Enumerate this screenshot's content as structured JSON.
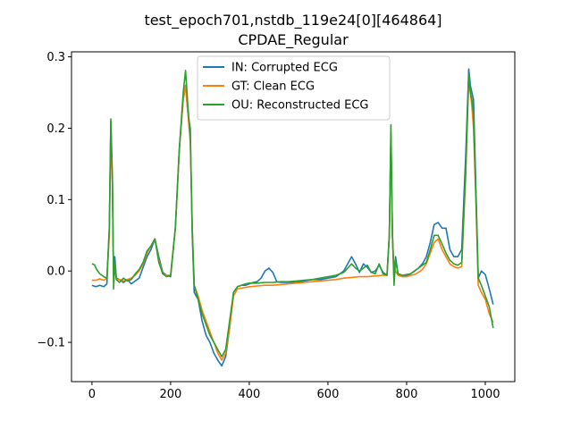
{
  "chart_data": {
    "type": "line",
    "title": "test_epoch701,nstdb_119e24[0][464864]",
    "subtitle": "CPDAE_Regular",
    "xlabel": "",
    "ylabel": "",
    "xlim": [
      -52,
      1075
    ],
    "ylim": [
      -0.155,
      0.307
    ],
    "xticks": [
      0,
      200,
      400,
      600,
      800,
      1000
    ],
    "yticks": [
      -0.1,
      0.0,
      0.1,
      0.2,
      0.3
    ],
    "xtick_labels": [
      "0",
      "200",
      "400",
      "600",
      "800",
      "1000"
    ],
    "ytick_labels": [
      "−0.1",
      "0.0",
      "0.1",
      "0.2",
      "0.3"
    ],
    "grid": false,
    "legend_position": "top-center",
    "series": [
      {
        "name": "IN: Corrupted ECG",
        "color": "#1f77b4",
        "points": [
          [
            0,
            -0.02
          ],
          [
            10,
            -0.022
          ],
          [
            20,
            -0.02
          ],
          [
            30,
            -0.022
          ],
          [
            38,
            -0.018
          ],
          [
            44,
            0.06
          ],
          [
            48,
            0.21
          ],
          [
            52,
            0.12
          ],
          [
            55,
            -0.01
          ],
          [
            58,
            0.02
          ],
          [
            62,
            -0.01
          ],
          [
            70,
            -0.012
          ],
          [
            80,
            -0.016
          ],
          [
            90,
            -0.012
          ],
          [
            100,
            -0.018
          ],
          [
            110,
            -0.014
          ],
          [
            120,
            -0.01
          ],
          [
            130,
            0.005
          ],
          [
            140,
            0.02
          ],
          [
            150,
            0.03
          ],
          [
            160,
            0.045
          ],
          [
            170,
            0.02
          ],
          [
            180,
            -0.002
          ],
          [
            190,
            -0.006
          ],
          [
            200,
            -0.008
          ],
          [
            212,
            0.06
          ],
          [
            222,
            0.17
          ],
          [
            232,
            0.24
          ],
          [
            238,
            0.26
          ],
          [
            244,
            0.22
          ],
          [
            250,
            0.2
          ],
          [
            255,
            0.05
          ],
          [
            260,
            -0.03
          ],
          [
            270,
            -0.04
          ],
          [
            280,
            -0.07
          ],
          [
            290,
            -0.09
          ],
          [
            300,
            -0.1
          ],
          [
            310,
            -0.115
          ],
          [
            320,
            -0.125
          ],
          [
            330,
            -0.133
          ],
          [
            340,
            -0.12
          ],
          [
            350,
            -0.08
          ],
          [
            360,
            -0.03
          ],
          [
            370,
            -0.022
          ],
          [
            380,
            -0.02
          ],
          [
            390,
            -0.02
          ],
          [
            400,
            -0.018
          ],
          [
            410,
            -0.016
          ],
          [
            420,
            -0.015
          ],
          [
            430,
            -0.01
          ],
          [
            440,
            0.0
          ],
          [
            450,
            0.004
          ],
          [
            460,
            -0.002
          ],
          [
            470,
            -0.015
          ],
          [
            480,
            -0.016
          ],
          [
            500,
            -0.016
          ],
          [
            520,
            -0.016
          ],
          [
            540,
            -0.014
          ],
          [
            560,
            -0.012
          ],
          [
            580,
            -0.012
          ],
          [
            600,
            -0.01
          ],
          [
            620,
            -0.008
          ],
          [
            640,
            0.0
          ],
          [
            650,
            0.01
          ],
          [
            660,
            0.02
          ],
          [
            670,
            0.01
          ],
          [
            680,
            -0.002
          ],
          [
            690,
            0.01
          ],
          [
            700,
            0.005
          ],
          [
            710,
            -0.002
          ],
          [
            720,
            0.0
          ],
          [
            730,
            0.008
          ],
          [
            740,
            -0.002
          ],
          [
            750,
            -0.006
          ],
          [
            756,
            0.05
          ],
          [
            760,
            0.19
          ],
          [
            764,
            0.05
          ],
          [
            768,
            -0.004
          ],
          [
            772,
            0.02
          ],
          [
            778,
            -0.004
          ],
          [
            790,
            -0.008
          ],
          [
            800,
            -0.006
          ],
          [
            810,
            -0.004
          ],
          [
            820,
            0.0
          ],
          [
            830,
            0.004
          ],
          [
            840,
            0.01
          ],
          [
            850,
            0.02
          ],
          [
            860,
            0.04
          ],
          [
            870,
            0.065
          ],
          [
            880,
            0.068
          ],
          [
            890,
            0.06
          ],
          [
            900,
            0.06
          ],
          [
            910,
            0.03
          ],
          [
            920,
            0.02
          ],
          [
            930,
            0.02
          ],
          [
            940,
            0.03
          ],
          [
            950,
            0.16
          ],
          [
            958,
            0.283
          ],
          [
            962,
            0.26
          ],
          [
            966,
            0.25
          ],
          [
            970,
            0.24
          ],
          [
            976,
            0.12
          ],
          [
            982,
            -0.01
          ],
          [
            990,
            0.0
          ],
          [
            1000,
            -0.005
          ],
          [
            1010,
            -0.025
          ],
          [
            1020,
            -0.047
          ]
        ]
      },
      {
        "name": "GT: Clean ECG",
        "color": "#ff7f0e",
        "points": [
          [
            0,
            -0.013
          ],
          [
            10,
            -0.013
          ],
          [
            20,
            -0.011
          ],
          [
            30,
            -0.013
          ],
          [
            38,
            -0.01
          ],
          [
            44,
            0.05
          ],
          [
            48,
            0.19
          ],
          [
            52,
            0.12
          ],
          [
            55,
            -0.01
          ],
          [
            58,
            0.01
          ],
          [
            62,
            -0.012
          ],
          [
            70,
            -0.012
          ],
          [
            80,
            -0.014
          ],
          [
            90,
            -0.012
          ],
          [
            100,
            -0.01
          ],
          [
            110,
            -0.006
          ],
          [
            120,
            0.0
          ],
          [
            130,
            0.01
          ],
          [
            140,
            0.025
          ],
          [
            150,
            0.035
          ],
          [
            160,
            0.045
          ],
          [
            170,
            0.015
          ],
          [
            180,
            -0.004
          ],
          [
            190,
            -0.006
          ],
          [
            200,
            -0.006
          ],
          [
            212,
            0.06
          ],
          [
            222,
            0.17
          ],
          [
            232,
            0.24
          ],
          [
            238,
            0.26
          ],
          [
            244,
            0.22
          ],
          [
            250,
            0.18
          ],
          [
            255,
            0.06
          ],
          [
            260,
            -0.02
          ],
          [
            270,
            -0.035
          ],
          [
            280,
            -0.055
          ],
          [
            290,
            -0.07
          ],
          [
            300,
            -0.085
          ],
          [
            310,
            -0.1
          ],
          [
            320,
            -0.115
          ],
          [
            330,
            -0.125
          ],
          [
            340,
            -0.115
          ],
          [
            350,
            -0.08
          ],
          [
            360,
            -0.035
          ],
          [
            370,
            -0.025
          ],
          [
            380,
            -0.024
          ],
          [
            390,
            -0.023
          ],
          [
            400,
            -0.022
          ],
          [
            420,
            -0.021
          ],
          [
            440,
            -0.02
          ],
          [
            460,
            -0.02
          ],
          [
            480,
            -0.019
          ],
          [
            500,
            -0.018
          ],
          [
            520,
            -0.017
          ],
          [
            540,
            -0.016
          ],
          [
            560,
            -0.015
          ],
          [
            580,
            -0.014
          ],
          [
            600,
            -0.013
          ],
          [
            620,
            -0.012
          ],
          [
            640,
            -0.01
          ],
          [
            660,
            -0.009
          ],
          [
            680,
            -0.008
          ],
          [
            700,
            -0.008
          ],
          [
            720,
            -0.007
          ],
          [
            740,
            -0.006
          ],
          [
            750,
            -0.006
          ],
          [
            756,
            0.05
          ],
          [
            760,
            0.19
          ],
          [
            764,
            0.05
          ],
          [
            768,
            -0.004
          ],
          [
            772,
            0.0
          ],
          [
            778,
            -0.006
          ],
          [
            790,
            -0.008
          ],
          [
            800,
            -0.008
          ],
          [
            810,
            -0.006
          ],
          [
            820,
            -0.005
          ],
          [
            830,
            -0.002
          ],
          [
            840,
            0.002
          ],
          [
            850,
            0.01
          ],
          [
            860,
            0.025
          ],
          [
            870,
            0.04
          ],
          [
            880,
            0.045
          ],
          [
            890,
            0.03
          ],
          [
            900,
            0.02
          ],
          [
            910,
            0.01
          ],
          [
            920,
            0.006
          ],
          [
            930,
            0.004
          ],
          [
            940,
            0.006
          ],
          [
            950,
            0.13
          ],
          [
            958,
            0.27
          ],
          [
            962,
            0.25
          ],
          [
            966,
            0.23
          ],
          [
            970,
            0.2
          ],
          [
            976,
            0.1
          ],
          [
            982,
            -0.02
          ],
          [
            990,
            -0.03
          ],
          [
            1000,
            -0.04
          ],
          [
            1010,
            -0.06
          ],
          [
            1020,
            -0.072
          ]
        ]
      },
      {
        "name": "OU: Reconstructed ECG",
        "color": "#2ca02c",
        "points": [
          [
            0,
            0.01
          ],
          [
            6,
            0.009
          ],
          [
            12,
            0.002
          ],
          [
            20,
            -0.004
          ],
          [
            30,
            -0.008
          ],
          [
            38,
            -0.01
          ],
          [
            44,
            0.06
          ],
          [
            48,
            0.213
          ],
          [
            52,
            0.13
          ],
          [
            55,
            -0.025
          ],
          [
            58,
            0.01
          ],
          [
            62,
            -0.012
          ],
          [
            70,
            -0.016
          ],
          [
            80,
            -0.01
          ],
          [
            90,
            -0.014
          ],
          [
            100,
            -0.012
          ],
          [
            110,
            -0.004
          ],
          [
            120,
            0.002
          ],
          [
            130,
            0.012
          ],
          [
            140,
            0.028
          ],
          [
            150,
            0.035
          ],
          [
            160,
            0.045
          ],
          [
            170,
            0.012
          ],
          [
            180,
            -0.004
          ],
          [
            190,
            -0.008
          ],
          [
            200,
            -0.006
          ],
          [
            212,
            0.06
          ],
          [
            222,
            0.17
          ],
          [
            232,
            0.25
          ],
          [
            238,
            0.281
          ],
          [
            244,
            0.23
          ],
          [
            250,
            0.19
          ],
          [
            255,
            0.06
          ],
          [
            260,
            -0.02
          ],
          [
            270,
            -0.04
          ],
          [
            280,
            -0.06
          ],
          [
            290,
            -0.075
          ],
          [
            300,
            -0.09
          ],
          [
            310,
            -0.1
          ],
          [
            320,
            -0.11
          ],
          [
            330,
            -0.12
          ],
          [
            340,
            -0.11
          ],
          [
            350,
            -0.07
          ],
          [
            360,
            -0.03
          ],
          [
            370,
            -0.022
          ],
          [
            380,
            -0.02
          ],
          [
            390,
            -0.018
          ],
          [
            400,
            -0.017
          ],
          [
            420,
            -0.017
          ],
          [
            440,
            -0.016
          ],
          [
            460,
            -0.016
          ],
          [
            480,
            -0.015
          ],
          [
            500,
            -0.015
          ],
          [
            520,
            -0.014
          ],
          [
            540,
            -0.013
          ],
          [
            560,
            -0.012
          ],
          [
            580,
            -0.01
          ],
          [
            600,
            -0.008
          ],
          [
            620,
            -0.006
          ],
          [
            640,
            -0.002
          ],
          [
            650,
            0.004
          ],
          [
            660,
            0.01
          ],
          [
            670,
            0.004
          ],
          [
            680,
            0.0
          ],
          [
            690,
            0.004
          ],
          [
            700,
            0.008
          ],
          [
            710,
            -0.002
          ],
          [
            720,
            -0.004
          ],
          [
            730,
            0.01
          ],
          [
            740,
            -0.004
          ],
          [
            750,
            -0.006
          ],
          [
            756,
            0.05
          ],
          [
            760,
            0.205
          ],
          [
            764,
            0.05
          ],
          [
            768,
            -0.02
          ],
          [
            772,
            0.015
          ],
          [
            778,
            -0.004
          ],
          [
            790,
            -0.006
          ],
          [
            800,
            -0.005
          ],
          [
            810,
            -0.004
          ],
          [
            820,
            0.0
          ],
          [
            830,
            0.004
          ],
          [
            840,
            0.008
          ],
          [
            850,
            0.012
          ],
          [
            860,
            0.03
          ],
          [
            870,
            0.05
          ],
          [
            880,
            0.05
          ],
          [
            890,
            0.038
          ],
          [
            900,
            0.025
          ],
          [
            910,
            0.015
          ],
          [
            920,
            0.01
          ],
          [
            930,
            0.008
          ],
          [
            940,
            0.012
          ],
          [
            950,
            0.14
          ],
          [
            958,
            0.275
          ],
          [
            962,
            0.25
          ],
          [
            966,
            0.24
          ],
          [
            970,
            0.22
          ],
          [
            976,
            0.11
          ],
          [
            982,
            -0.01
          ],
          [
            990,
            -0.02
          ],
          [
            1000,
            -0.035
          ],
          [
            1010,
            -0.05
          ],
          [
            1020,
            -0.08
          ]
        ]
      }
    ]
  }
}
